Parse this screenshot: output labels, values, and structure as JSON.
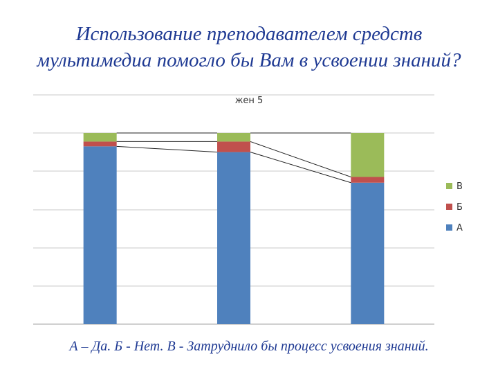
{
  "heading": {
    "line1": "Использование преподавателем средств",
    "line2": "мультимедиа помогло бы Вам в усвоении знаний?"
  },
  "caption": "А – Да. Б - Нет. В - Затруднило бы процесс усвоения знаний.",
  "chart_data": {
    "type": "bar",
    "stacked": true,
    "percent_stacked": true,
    "title": "жен 5",
    "categories": [
      "",
      "",
      ""
    ],
    "series": [
      {
        "name": "А",
        "color": "#4f81bd",
        "values": [
          93,
          90,
          74
        ]
      },
      {
        "name": "Б",
        "color": "#c0504d",
        "values": [
          2.5,
          5.5,
          3
        ]
      },
      {
        "name": "В",
        "color": "#9bbb59",
        "values": [
          4.5,
          4.5,
          23
        ]
      }
    ],
    "ylim": [
      0,
      100
    ],
    "grid": true,
    "series_lines": true,
    "legend_position": "right"
  }
}
